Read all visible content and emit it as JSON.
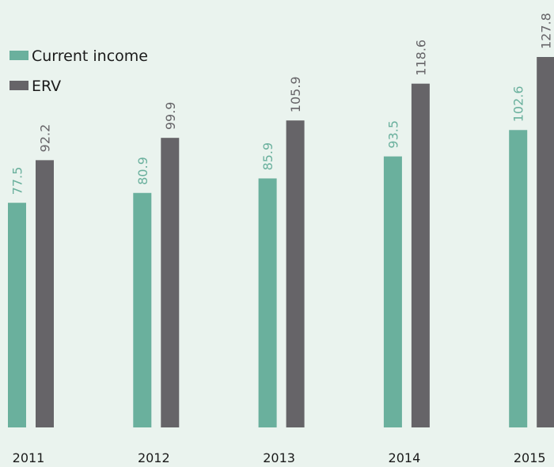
{
  "chart_data": {
    "type": "bar",
    "categories": [
      "2011",
      "2012",
      "2013",
      "2014",
      "2015"
    ],
    "series": [
      {
        "name": "Current income",
        "color": "#6ab09d",
        "values": [
          77.5,
          80.9,
          85.9,
          93.5,
          102.6
        ]
      },
      {
        "name": "ERV",
        "color": "#666468",
        "values": [
          92.2,
          99.9,
          105.9,
          118.6,
          127.8
        ]
      }
    ]
  }
}
